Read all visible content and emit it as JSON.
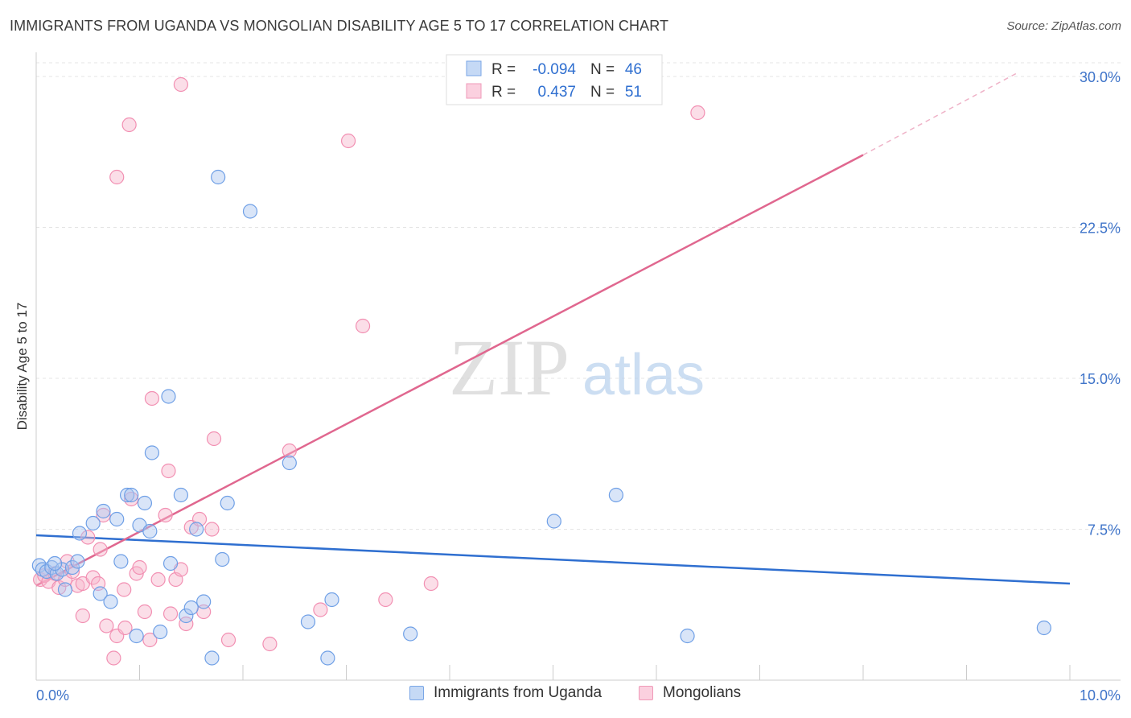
{
  "header": {
    "title": "IMMIGRANTS FROM UGANDA VS MONGOLIAN DISABILITY AGE 5 TO 17 CORRELATION CHART",
    "source": "Source: ZipAtlas.com"
  },
  "watermark": {
    "zip": "ZIP",
    "atlas": "atlas"
  },
  "chart_data": {
    "type": "scatter",
    "title": "IMMIGRANTS FROM UGANDA VS MONGOLIAN DISABILITY AGE 5 TO 17 CORRELATION CHART",
    "xlabel": "",
    "ylabel": "Disability Age 5 to 17",
    "xlim": [
      0,
      10
    ],
    "ylim": [
      0,
      31
    ],
    "x_tick_labels": {
      "min": "0.0%",
      "max": "10.0%"
    },
    "y_ticks": [
      {
        "value": 7.5,
        "label": "7.5%"
      },
      {
        "value": 15.0,
        "label": "15.0%"
      },
      {
        "value": 22.5,
        "label": "22.5%"
      },
      {
        "value": 30.0,
        "label": "30.0%"
      }
    ],
    "legend": {
      "position": "top-center",
      "rows": [
        {
          "r_label": "R =",
          "r_value": "-0.094",
          "n_label": "N =",
          "n_value": "46"
        },
        {
          "r_label": "R =",
          "r_value": "0.437",
          "n_label": "N =",
          "n_value": "51"
        }
      ]
    },
    "series": [
      {
        "name": "Immigrants from Uganda",
        "color": "#6e9fe6",
        "line_color": "#2f6fd0",
        "trend": {
          "x0": 0.0,
          "y0": 7.2,
          "x1": 10.0,
          "y1": 4.8
        },
        "points": [
          [
            0.03,
            5.7
          ],
          [
            0.06,
            5.5
          ],
          [
            0.1,
            5.4
          ],
          [
            0.15,
            5.6
          ],
          [
            0.2,
            5.3
          ],
          [
            0.25,
            5.5
          ],
          [
            0.18,
            5.8
          ],
          [
            0.28,
            4.5
          ],
          [
            0.35,
            5.6
          ],
          [
            0.4,
            5.9
          ],
          [
            0.42,
            7.3
          ],
          [
            0.55,
            7.8
          ],
          [
            0.65,
            8.4
          ],
          [
            0.62,
            4.3
          ],
          [
            0.72,
            3.9
          ],
          [
            0.78,
            8.0
          ],
          [
            0.82,
            5.9
          ],
          [
            0.88,
            9.2
          ],
          [
            0.92,
            9.2
          ],
          [
            0.97,
            2.2
          ],
          [
            1.0,
            7.7
          ],
          [
            1.05,
            8.8
          ],
          [
            1.1,
            7.4
          ],
          [
            1.12,
            11.3
          ],
          [
            1.2,
            2.4
          ],
          [
            1.28,
            14.1
          ],
          [
            1.3,
            5.8
          ],
          [
            1.4,
            9.2
          ],
          [
            1.45,
            3.2
          ],
          [
            1.5,
            3.6
          ],
          [
            1.55,
            7.5
          ],
          [
            1.62,
            3.9
          ],
          [
            1.7,
            1.1
          ],
          [
            1.76,
            25.0
          ],
          [
            1.8,
            6.0
          ],
          [
            1.85,
            8.8
          ],
          [
            2.07,
            23.3
          ],
          [
            2.45,
            10.8
          ],
          [
            2.63,
            2.9
          ],
          [
            2.82,
            1.1
          ],
          [
            2.86,
            4.0
          ],
          [
            3.62,
            2.3
          ],
          [
            5.01,
            7.9
          ],
          [
            5.61,
            9.2
          ],
          [
            6.3,
            2.2
          ],
          [
            9.75,
            2.6
          ]
        ]
      },
      {
        "name": "Mongolians",
        "color": "#f28fb2",
        "line_color": "#e0678f",
        "trend": {
          "x0": 0.0,
          "y0": 4.7,
          "x1": 8.0,
          "y1": 26.1
        },
        "trend_ext": {
          "x0": 8.0,
          "y0": 26.1,
          "x1": 9.5,
          "y1": 30.2
        },
        "points": [
          [
            0.04,
            5.0
          ],
          [
            0.08,
            5.2
          ],
          [
            0.12,
            4.9
          ],
          [
            0.18,
            5.3
          ],
          [
            0.22,
            4.6
          ],
          [
            0.28,
            5.0
          ],
          [
            0.3,
            5.9
          ],
          [
            0.35,
            5.4
          ],
          [
            0.4,
            4.7
          ],
          [
            0.45,
            4.8
          ],
          [
            0.45,
            3.2
          ],
          [
            0.5,
            7.1
          ],
          [
            0.55,
            5.1
          ],
          [
            0.62,
            6.5
          ],
          [
            0.65,
            8.2
          ],
          [
            0.68,
            2.7
          ],
          [
            0.75,
            1.1
          ],
          [
            0.78,
            25.0
          ],
          [
            0.78,
            2.2
          ],
          [
            0.85,
            4.5
          ],
          [
            0.9,
            27.6
          ],
          [
            0.86,
            2.6
          ],
          [
            0.92,
            9.0
          ],
          [
            0.97,
            5.3
          ],
          [
            1.0,
            5.6
          ],
          [
            1.05,
            3.4
          ],
          [
            1.1,
            2.0
          ],
          [
            1.12,
            14.0
          ],
          [
            1.18,
            5.0
          ],
          [
            1.25,
            8.2
          ],
          [
            1.28,
            10.4
          ],
          [
            1.3,
            3.3
          ],
          [
            1.35,
            5.0
          ],
          [
            1.4,
            29.6
          ],
          [
            1.45,
            2.8
          ],
          [
            1.5,
            7.6
          ],
          [
            1.58,
            8.0
          ],
          [
            1.62,
            3.4
          ],
          [
            1.7,
            7.5
          ],
          [
            1.72,
            12.0
          ],
          [
            1.86,
            2.0
          ],
          [
            2.26,
            1.8
          ],
          [
            2.45,
            11.4
          ],
          [
            2.75,
            3.5
          ],
          [
            3.02,
            26.8
          ],
          [
            3.16,
            17.6
          ],
          [
            3.38,
            4.0
          ],
          [
            3.82,
            4.8
          ],
          [
            6.4,
            28.2
          ],
          [
            1.4,
            5.5
          ],
          [
            0.6,
            4.8
          ]
        ]
      }
    ]
  }
}
